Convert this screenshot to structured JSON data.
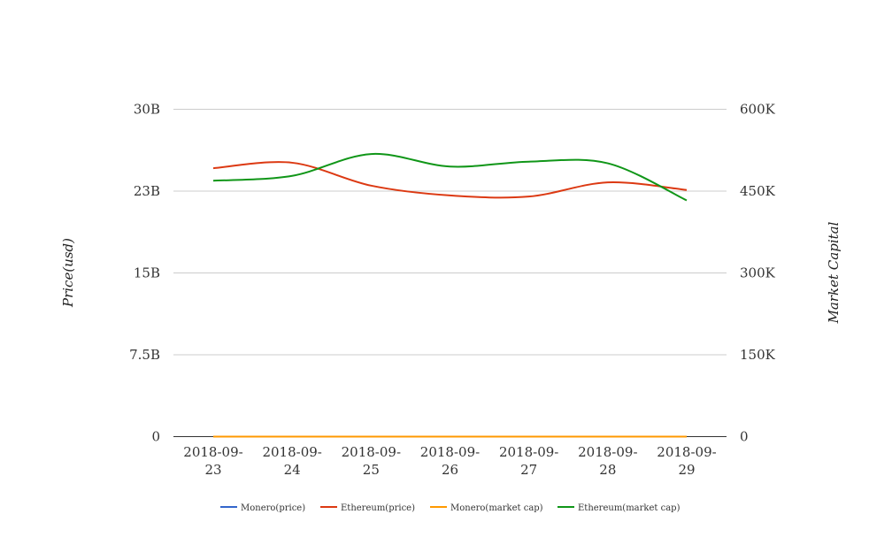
{
  "chart_data": {
    "type": "line",
    "x": [
      "2018-09-23",
      "2018-09-24",
      "2018-09-25",
      "2018-09-26",
      "2018-09-27",
      "2018-09-28",
      "2018-09-29"
    ],
    "x_tick_labels": [
      [
        "2018-09-",
        "23"
      ],
      [
        "2018-09-",
        "24"
      ],
      [
        "2018-09-",
        "25"
      ],
      [
        "2018-09-",
        "26"
      ],
      [
        "2018-09-",
        "27"
      ],
      [
        "2018-09-",
        "28"
      ],
      [
        "2018-09-",
        "29"
      ]
    ],
    "y_left": {
      "label": "Price(usd)",
      "ticks": [
        "0",
        "7.5B",
        "15B",
        "23B",
        "30B"
      ],
      "ylim": [
        0,
        30000000000
      ]
    },
    "y_right": {
      "label": "Market Capital",
      "ticks": [
        "0",
        "150K",
        "300K",
        "450K",
        "600K"
      ],
      "ylim": [
        0,
        600000
      ]
    },
    "grid": true,
    "legend_position": "bottom",
    "series": [
      {
        "name": "Monero(price)",
        "axis": "left",
        "color": "#3366cc",
        "values": [
          0,
          0,
          0,
          0,
          0,
          0,
          0
        ]
      },
      {
        "name": "Ethereum(price)",
        "axis": "left",
        "color": "#dc3912",
        "values": [
          24600000000,
          25100000000,
          23000000000,
          22100000000,
          22000000000,
          23300000000,
          22600000000
        ]
      },
      {
        "name": "Monero(market cap)",
        "axis": "right",
        "color": "#ff9900",
        "values": [
          0,
          0,
          0,
          0,
          0,
          0,
          0
        ]
      },
      {
        "name": "Ethereum(market cap)",
        "axis": "right",
        "color": "#109618",
        "values": [
          469000,
          478000,
          518000,
          495000,
          504000,
          501000,
          433000
        ]
      }
    ]
  }
}
